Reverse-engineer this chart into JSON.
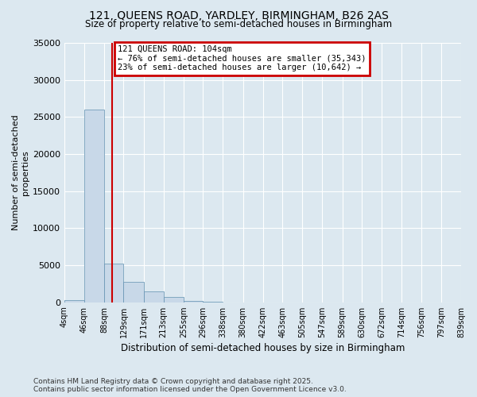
{
  "title_line1": "121, QUEENS ROAD, YARDLEY, BIRMINGHAM, B26 2AS",
  "title_line2": "Size of property relative to semi-detached houses in Birmingham",
  "xlabel": "Distribution of semi-detached houses by size in Birmingham",
  "ylabel": "Number of semi-detached\nproperties",
  "property_size": 104,
  "annotation_text": "121 QUEENS ROAD: 104sqm\n← 76% of semi-detached houses are smaller (35,343)\n23% of semi-detached houses are larger (10,642) →",
  "bin_edges": [
    4,
    46,
    88,
    129,
    171,
    213,
    255,
    296,
    338,
    380,
    422,
    463,
    505,
    547,
    589,
    630,
    672,
    714,
    756,
    797,
    839
  ],
  "bin_labels": [
    "4sqm",
    "46sqm",
    "88sqm",
    "129sqm",
    "171sqm",
    "213sqm",
    "255sqm",
    "296sqm",
    "338sqm",
    "380sqm",
    "422sqm",
    "463sqm",
    "505sqm",
    "547sqm",
    "589sqm",
    "630sqm",
    "672sqm",
    "714sqm",
    "756sqm",
    "797sqm",
    "839sqm"
  ],
  "bar_heights": [
    300,
    26000,
    5200,
    2700,
    1500,
    700,
    200,
    50,
    10,
    5,
    2,
    1,
    0,
    0,
    0,
    0,
    0,
    0,
    0,
    0
  ],
  "bar_color": "#c8d8e8",
  "bar_edge_color": "#6090b0",
  "red_line_color": "#cc0000",
  "annotation_box_color": "#cc0000",
  "bg_color": "#dce8f0",
  "ylim": [
    0,
    35000
  ],
  "yticks": [
    0,
    5000,
    10000,
    15000,
    20000,
    25000,
    30000,
    35000
  ],
  "footer_line1": "Contains HM Land Registry data © Crown copyright and database right 2025.",
  "footer_line2": "Contains public sector information licensed under the Open Government Licence v3.0."
}
